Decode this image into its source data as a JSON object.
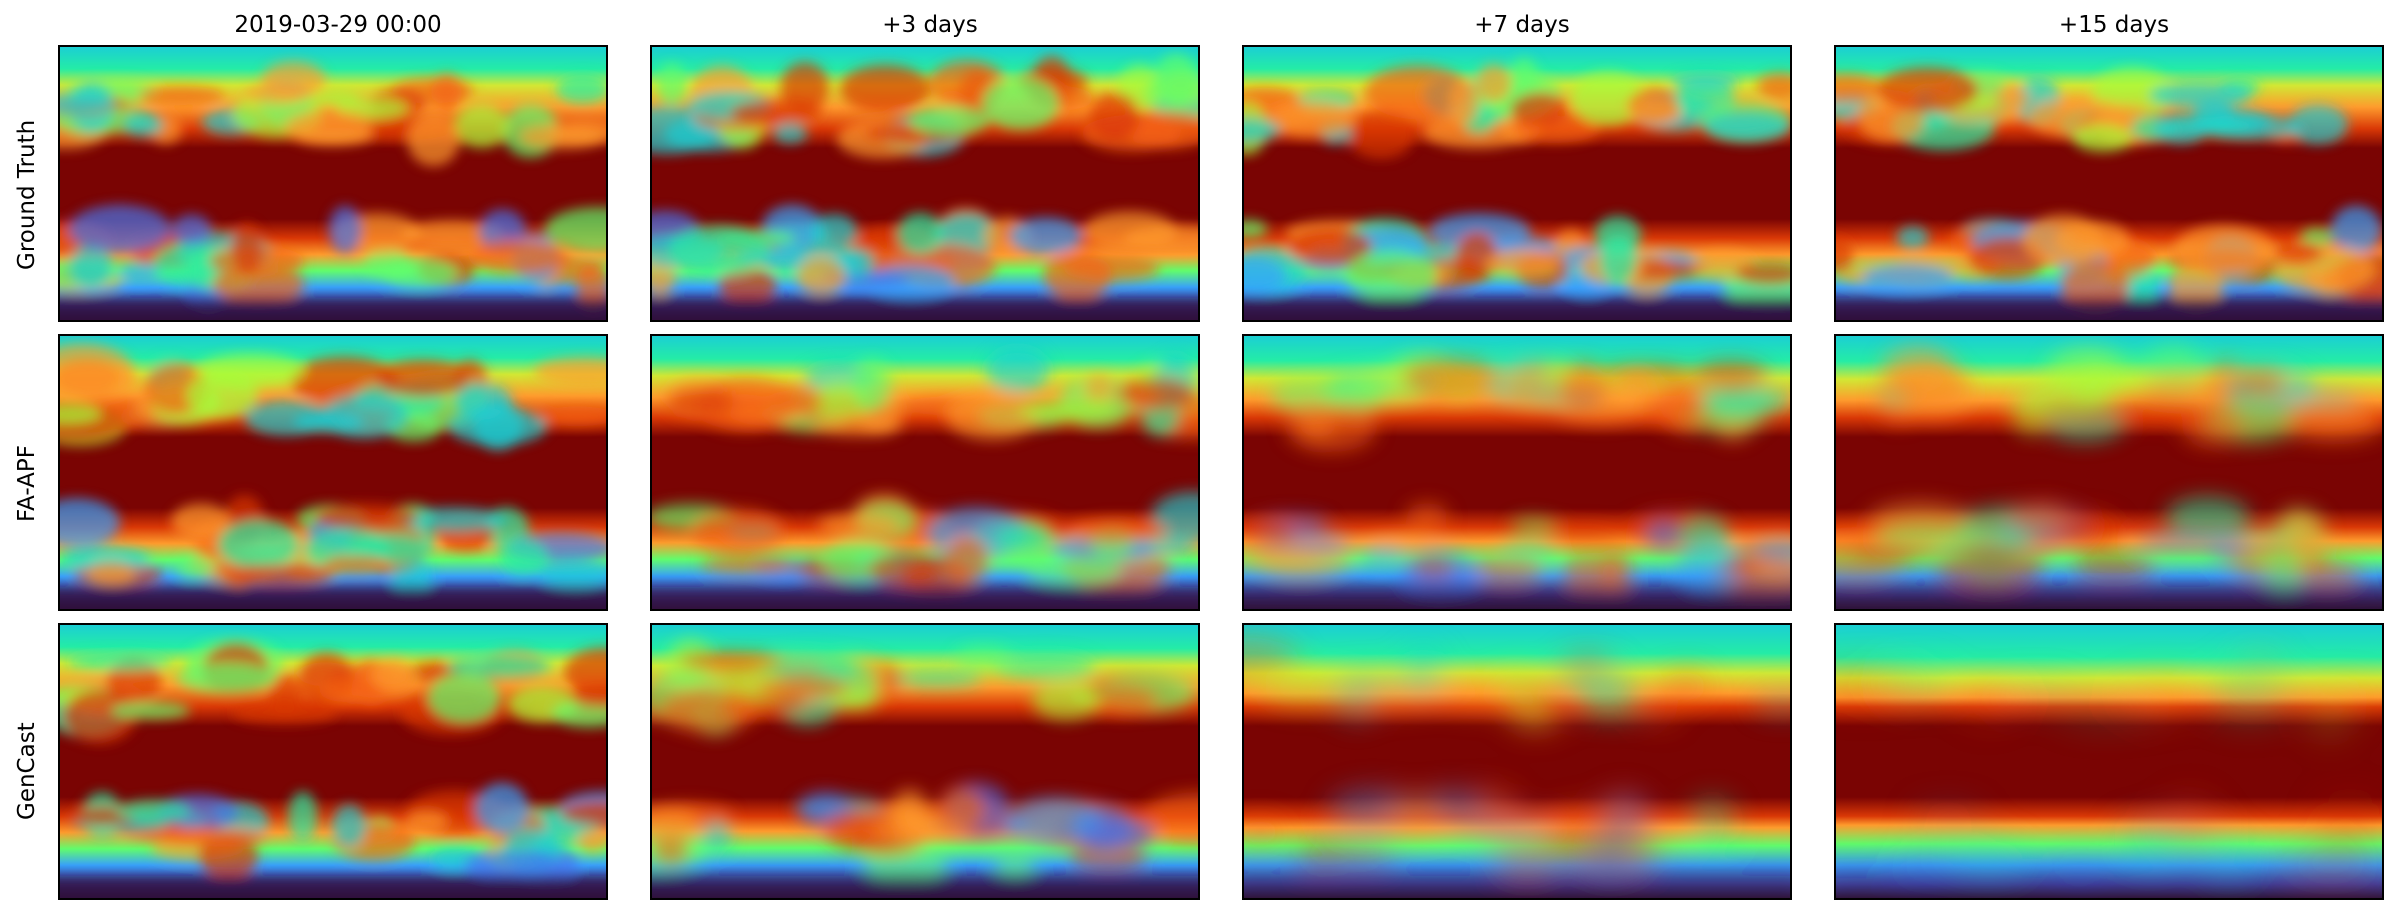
{
  "columns": [
    {
      "label": "2019-03-29 00:00"
    },
    {
      "label": "+3 days"
    },
    {
      "label": "+7 days"
    },
    {
      "label": "+15 days"
    }
  ],
  "rows": [
    {
      "label": "Ground Truth"
    },
    {
      "label": "FA-APF"
    },
    {
      "label": "GenCast"
    }
  ],
  "colormap": {
    "name": "turbo",
    "stops": [
      "#30123b",
      "#4145ab",
      "#4675ed",
      "#39a2fc",
      "#1bcfd4",
      "#24eca6",
      "#61fc6c",
      "#a4fc3b",
      "#d1e834",
      "#f3c63a",
      "#fe9b2d",
      "#f36315",
      "#d93806",
      "#b11901",
      "#7a0403"
    ]
  },
  "panels": [
    [
      {
        "row": "Ground Truth",
        "col": "2019-03-29 00:00",
        "sharpness": 1.0
      },
      {
        "row": "Ground Truth",
        "col": "+3 days",
        "sharpness": 1.0
      },
      {
        "row": "Ground Truth",
        "col": "+7 days",
        "sharpness": 1.0
      },
      {
        "row": "Ground Truth",
        "col": "+15 days",
        "sharpness": 1.0
      }
    ],
    [
      {
        "row": "FA-APF",
        "col": "2019-03-29 00:00",
        "sharpness": 1.0
      },
      {
        "row": "FA-APF",
        "col": "+3 days",
        "sharpness": 0.9
      },
      {
        "row": "FA-APF",
        "col": "+7 days",
        "sharpness": 0.75
      },
      {
        "row": "FA-APF",
        "col": "+15 days",
        "sharpness": 0.7
      }
    ],
    [
      {
        "row": "GenCast",
        "col": "2019-03-29 00:00",
        "sharpness": 1.0
      },
      {
        "row": "GenCast",
        "col": "+3 days",
        "sharpness": 0.85
      },
      {
        "row": "GenCast",
        "col": "+7 days",
        "sharpness": 0.4
      },
      {
        "row": "GenCast",
        "col": "+15 days",
        "sharpness": 0.1
      }
    ]
  ]
}
